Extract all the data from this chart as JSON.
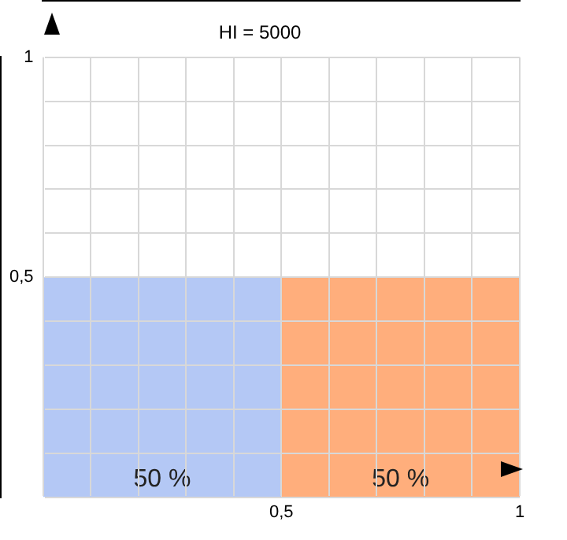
{
  "chart_data": {
    "type": "histogram",
    "title": "HI = 5000",
    "bins": [
      0,
      0.5,
      1
    ],
    "values": [
      0.5,
      0.5
    ],
    "colors": [
      "#b4c8f5",
      "#ffae7c"
    ],
    "value_labels": [
      "50 %",
      "50 %"
    ],
    "xlim": [
      0,
      1
    ],
    "ylim": [
      0,
      1
    ],
    "xticks": [
      {
        "value": 0,
        "label": null
      },
      {
        "value": 0.1,
        "label": null
      },
      {
        "value": 0.2,
        "label": null
      },
      {
        "value": 0.3,
        "label": null
      },
      {
        "value": 0.4,
        "label": null
      },
      {
        "value": 0.5,
        "label": "0,5"
      },
      {
        "value": 0.6,
        "label": null
      },
      {
        "value": 0.7,
        "label": null
      },
      {
        "value": 0.8,
        "label": null
      },
      {
        "value": 0.9,
        "label": null
      },
      {
        "value": 1,
        "label": "1"
      }
    ],
    "yticks": [
      {
        "value": 0,
        "label": null
      },
      {
        "value": 0.1,
        "label": null
      },
      {
        "value": 0.2,
        "label": null
      },
      {
        "value": 0.3,
        "label": null
      },
      {
        "value": 0.4,
        "label": null
      },
      {
        "value": 0.5,
        "label": "0,5"
      },
      {
        "value": 0.6,
        "label": null
      },
      {
        "value": 0.7,
        "label": null
      },
      {
        "value": 0.8,
        "label": null
      },
      {
        "value": 0.9,
        "label": null
      },
      {
        "value": 1,
        "label": "1"
      }
    ],
    "grid": true
  }
}
